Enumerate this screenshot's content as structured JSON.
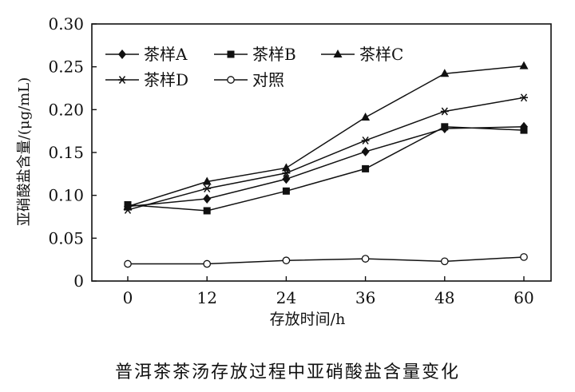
{
  "chart_data": {
    "type": "line",
    "title": "普洱茶茶汤存放过程中亚硝酸盐含量变化",
    "xlabel": "存放时间/h",
    "ylabel": "亚硝酸盐含量/(μg/mL)",
    "x": [
      0,
      12,
      24,
      36,
      48,
      60
    ],
    "x_tick_labels": [
      "0",
      "12",
      "24",
      "36",
      "48",
      "60"
    ],
    "y_tick_labels": [
      "0",
      "0.05",
      "0.10",
      "0.15",
      "0.20",
      "0.25",
      "0.30"
    ],
    "ylim": [
      0,
      0.3
    ],
    "grid": false,
    "legend_position": "top-left",
    "series": [
      {
        "name": "茶样A",
        "marker": "diamond",
        "values": [
          0.087,
          0.096,
          0.119,
          0.151,
          0.178,
          0.18
        ]
      },
      {
        "name": "茶样B",
        "marker": "square",
        "values": [
          0.089,
          0.082,
          0.105,
          0.131,
          0.18,
          0.176
        ]
      },
      {
        "name": "茶样C",
        "marker": "triangle",
        "values": [
          0.087,
          0.116,
          0.132,
          0.191,
          0.242,
          0.251
        ]
      },
      {
        "name": "茶样D",
        "marker": "asterisk",
        "values": [
          0.083,
          0.108,
          0.126,
          0.164,
          0.198,
          0.214
        ]
      },
      {
        "name": "对照",
        "marker": "circle-open",
        "values": [
          0.02,
          0.02,
          0.024,
          0.026,
          0.023,
          0.028
        ]
      }
    ]
  }
}
